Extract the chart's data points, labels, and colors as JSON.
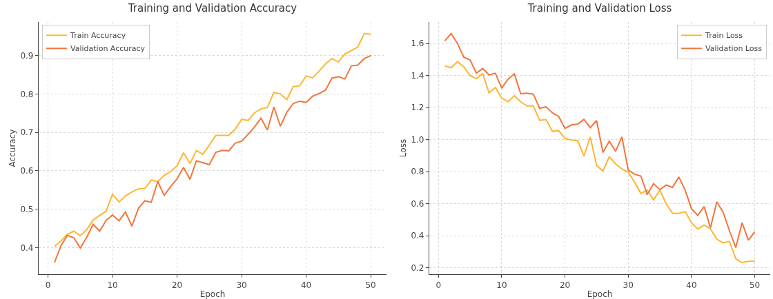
{
  "chart_data": [
    {
      "type": "line",
      "title": "Training and Validation Accuracy",
      "xlabel": "Epoch",
      "ylabel": "Accuracy",
      "x": [
        1,
        2,
        3,
        4,
        5,
        6,
        7,
        8,
        9,
        10,
        11,
        12,
        13,
        14,
        15,
        16,
        17,
        18,
        19,
        20,
        21,
        22,
        23,
        24,
        25,
        26,
        27,
        28,
        29,
        30,
        31,
        32,
        33,
        34,
        35,
        36,
        37,
        38,
        39,
        40,
        41,
        42,
        43,
        44,
        45,
        46,
        47,
        48,
        49,
        50
      ],
      "series": [
        {
          "name": "Train Accuracy",
          "color": "#ffb52e",
          "values": [
            0.403,
            0.417,
            0.435,
            0.443,
            0.431,
            0.447,
            0.472,
            0.484,
            0.495,
            0.539,
            0.519,
            0.535,
            0.545,
            0.553,
            0.554,
            0.576,
            0.572,
            0.588,
            0.598,
            0.613,
            0.647,
            0.619,
            0.653,
            0.643,
            0.667,
            0.692,
            0.692,
            0.692,
            0.708,
            0.734,
            0.731,
            0.751,
            0.761,
            0.765,
            0.804,
            0.8,
            0.785,
            0.819,
            0.821,
            0.847,
            0.842,
            0.859,
            0.878,
            0.892,
            0.883,
            0.904,
            0.913,
            0.922,
            0.957,
            0.955
          ]
        },
        {
          "name": "Validation Accuracy",
          "color": "#f4743b",
          "values": [
            0.361,
            0.405,
            0.432,
            0.426,
            0.399,
            0.427,
            0.461,
            0.443,
            0.471,
            0.485,
            0.47,
            0.493,
            0.456,
            0.502,
            0.522,
            0.518,
            0.572,
            0.536,
            0.559,
            0.579,
            0.609,
            0.578,
            0.626,
            0.621,
            0.616,
            0.648,
            0.653,
            0.652,
            0.672,
            0.677,
            0.695,
            0.714,
            0.737,
            0.706,
            0.766,
            0.716,
            0.752,
            0.775,
            0.781,
            0.778,
            0.794,
            0.801,
            0.81,
            0.841,
            0.845,
            0.839,
            0.873,
            0.875,
            0.892,
            0.9
          ]
        }
      ],
      "xlim": [
        -1.45,
        52.45
      ],
      "xticks": [
        0,
        10,
        20,
        30,
        40,
        50
      ],
      "ylim": [
        0.331,
        0.987
      ],
      "yticks": [
        0.4,
        0.5,
        0.6,
        0.7,
        0.8,
        0.9
      ],
      "grid": true,
      "legend": "top left",
      "marker": "none",
      "line_style": "solid"
    },
    {
      "type": "line",
      "title": "Training and Validation Loss",
      "xlabel": "Epoch",
      "ylabel": "Loss",
      "x": [
        1,
        2,
        3,
        4,
        5,
        6,
        7,
        8,
        9,
        10,
        11,
        12,
        13,
        14,
        15,
        16,
        17,
        18,
        19,
        20,
        21,
        22,
        23,
        24,
        25,
        26,
        27,
        28,
        29,
        30,
        31,
        32,
        33,
        34,
        35,
        36,
        37,
        38,
        39,
        40,
        41,
        42,
        43,
        44,
        45,
        46,
        47,
        48,
        49,
        50
      ],
      "series": [
        {
          "name": "Train Loss",
          "color": "#ffb52e",
          "values": [
            1.46,
            1.449,
            1.486,
            1.455,
            1.4,
            1.381,
            1.412,
            1.292,
            1.325,
            1.26,
            1.236,
            1.274,
            1.236,
            1.21,
            1.21,
            1.12,
            1.125,
            1.052,
            1.056,
            1.008,
            0.997,
            0.994,
            0.898,
            1.017,
            0.839,
            0.804,
            0.893,
            0.849,
            0.817,
            0.796,
            0.735,
            0.664,
            0.685,
            0.624,
            0.685,
            0.6,
            0.54,
            0.54,
            0.551,
            0.481,
            0.442,
            0.467,
            0.443,
            0.379,
            0.356,
            0.365,
            0.256,
            0.232,
            0.241,
            0.241
          ]
        },
        {
          "name": "Validation Loss",
          "color": "#f4743b",
          "values": [
            1.616,
            1.662,
            1.601,
            1.515,
            1.497,
            1.415,
            1.444,
            1.404,
            1.414,
            1.322,
            1.377,
            1.41,
            1.287,
            1.29,
            1.284,
            1.195,
            1.205,
            1.168,
            1.145,
            1.07,
            1.092,
            1.096,
            1.127,
            1.074,
            1.119,
            0.92,
            0.99,
            0.927,
            1.017,
            0.81,
            0.784,
            0.773,
            0.657,
            0.725,
            0.688,
            0.716,
            0.702,
            0.767,
            0.685,
            0.569,
            0.527,
            0.582,
            0.449,
            0.612,
            0.547,
            0.432,
            0.326,
            0.481,
            0.372,
            0.425
          ]
        }
      ],
      "xlim": [
        -1.45,
        52.45
      ],
      "xticks": [
        0,
        10,
        20,
        30,
        40,
        50
      ],
      "ylim": [
        0.16,
        1.734
      ],
      "yticks": [
        0.2,
        0.4,
        0.6,
        0.8,
        {
          "value": 1,
          "label": "1.0"
        },
        1.2,
        1.4,
        1.6
      ],
      "grid": true,
      "legend": "top right",
      "marker": "none",
      "line_style": "solid"
    }
  ]
}
